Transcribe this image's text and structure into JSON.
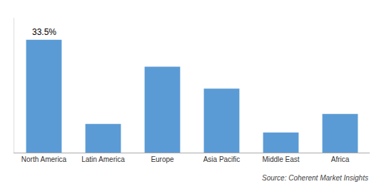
{
  "chart_data": {
    "type": "bar",
    "categories": [
      "North America",
      "Latin America",
      "Europe",
      "Asia Pacific",
      "Middle East",
      "Africa"
    ],
    "values": [
      33.5,
      8.5,
      25.5,
      19.0,
      6.0,
      11.5
    ],
    "color": "#5B9BD5",
    "ylim": [
      0,
      40
    ],
    "tick_labels": "x",
    "grid": false,
    "annotations": [
      {
        "text": "33.5%",
        "category": "North America"
      },
      {
        "text": "Source: Coherent Market Insights"
      }
    ]
  }
}
